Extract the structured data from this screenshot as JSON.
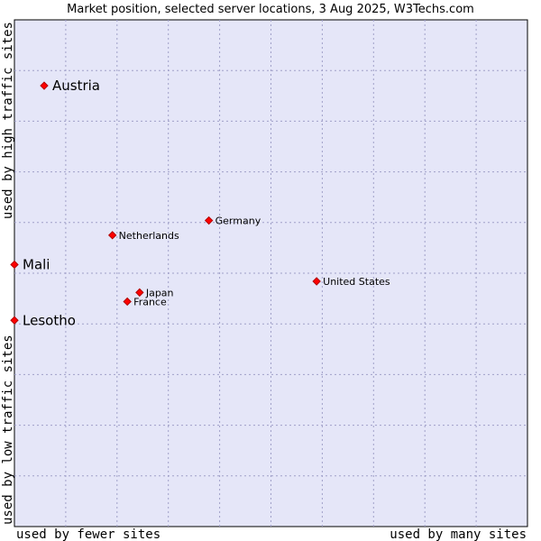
{
  "chart_data": {
    "type": "scatter",
    "title": "Market position, selected server locations, 3 Aug 2025, W3Techs.com",
    "xlabel_left": "used by fewer sites",
    "xlabel_right": "used by many sites",
    "ylabel_bottom": "used by low traffic sites",
    "ylabel_top": "used by high traffic sites",
    "xlim": [
      0,
      100
    ],
    "ylim": [
      0,
      100
    ],
    "grid": true,
    "series": [
      {
        "name": "selected server locations",
        "points": [
          {
            "label": "Austria",
            "x": 5.8,
            "y": 87.0,
            "size": "large"
          },
          {
            "label": "Mali",
            "x": 0.0,
            "y": 51.7,
            "size": "large"
          },
          {
            "label": "Lesotho",
            "x": 0.0,
            "y": 40.7,
            "size": "large"
          },
          {
            "label": "Germany",
            "x": 37.9,
            "y": 60.4,
            "size": "small"
          },
          {
            "label": "Netherlands",
            "x": 19.1,
            "y": 57.5,
            "size": "small"
          },
          {
            "label": "United States",
            "x": 58.9,
            "y": 48.4,
            "size": "small"
          },
          {
            "label": "Japan",
            "x": 24.4,
            "y": 46.2,
            "size": "small"
          },
          {
            "label": "France",
            "x": 22.0,
            "y": 44.4,
            "size": "small"
          }
        ]
      }
    ]
  }
}
